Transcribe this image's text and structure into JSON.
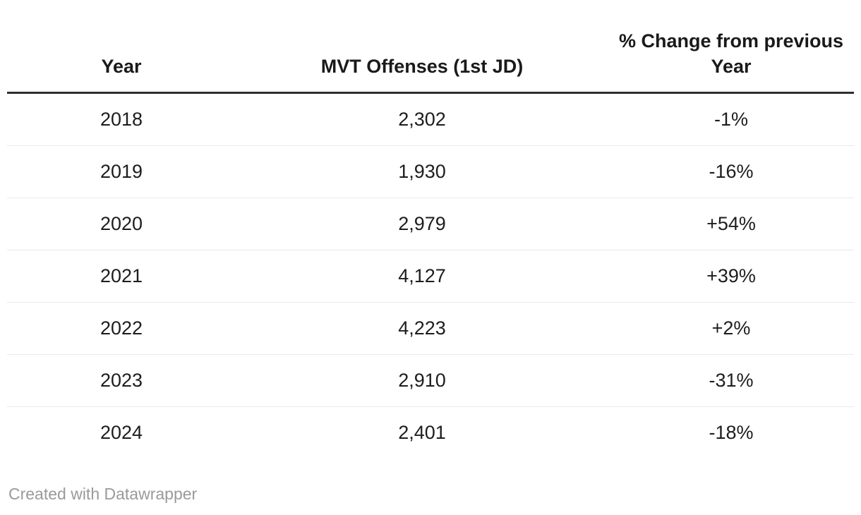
{
  "colors": {
    "background": "#ffffff",
    "header_text": "#1a1a1a",
    "body_text": "#1d1d1d",
    "header_rule": "#2e2e2e",
    "row_divider": "#e9e9e9",
    "footer_text": "#9a9a9a"
  },
  "table": {
    "headers": [
      "Year",
      "MVT Offenses (1st JD)",
      "% Change from previous Year"
    ],
    "rows": [
      [
        "2018",
        "2,302",
        "-1%"
      ],
      [
        "2019",
        "1,930",
        "-16%"
      ],
      [
        "2020",
        "2,979",
        "+54%"
      ],
      [
        "2021",
        "4,127",
        "+39%"
      ],
      [
        "2022",
        "4,223",
        "+2%"
      ],
      [
        "2023",
        "2,910",
        "-31%"
      ],
      [
        "2024",
        "2,401",
        "-18%"
      ]
    ]
  },
  "footer": {
    "attribution": "Created with Datawrapper"
  },
  "chart_data": {
    "type": "table",
    "columns": [
      "Year",
      "MVT Offenses (1st JD)",
      "% Change from previous Year"
    ],
    "rows": [
      [
        "2018",
        "2,302",
        "-1%"
      ],
      [
        "2019",
        "1,930",
        "-16%"
      ],
      [
        "2020",
        "2,979",
        "+54%"
      ],
      [
        "2021",
        "4,127",
        "+39%"
      ],
      [
        "2022",
        "4,223",
        "+2%"
      ],
      [
        "2023",
        "2,910",
        "-31%"
      ],
      [
        "2024",
        "2,401",
        "-18%"
      ]
    ],
    "years": [
      2018,
      2019,
      2020,
      2021,
      2022,
      2023,
      2024
    ],
    "mvt_offenses": [
      2302,
      1930,
      2979,
      4127,
      4223,
      2910,
      2401
    ],
    "pct_change_from_previous_year": [
      -1,
      -16,
      54,
      39,
      2,
      -31,
      -18
    ]
  }
}
